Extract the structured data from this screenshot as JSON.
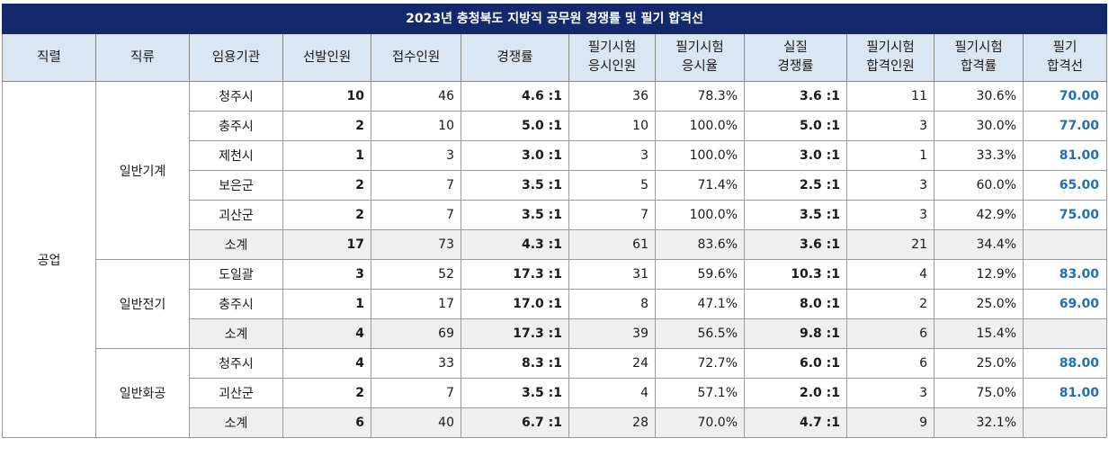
{
  "title": "2023년 충청북도 지방직 공무원 경쟁률 및 필기 합격선",
  "headers": [
    {
      "l1": "직렬",
      "l2": ""
    },
    {
      "l1": "직류",
      "l2": ""
    },
    {
      "l1": "임용기관",
      "l2": ""
    },
    {
      "l1": "선발인원",
      "l2": ""
    },
    {
      "l1": "접수인원",
      "l2": ""
    },
    {
      "l1": "경쟁률",
      "l2": ""
    },
    {
      "l1": "필기시험",
      "l2": "응시인원"
    },
    {
      "l1": "필기시험",
      "l2": "응시율"
    },
    {
      "l1": "실질",
      "l2": "경쟁률"
    },
    {
      "l1": "필기시험",
      "l2": "합격인원"
    },
    {
      "l1": "필기시험",
      "l2": "합격률"
    },
    {
      "l1": "필기",
      "l2": "합격선"
    }
  ],
  "series": "공업",
  "groups": [
    {
      "name": "일반기계",
      "rows": [
        {
          "agency": "청주시",
          "select": "10",
          "apply": "46",
          "ratio": "4.6 :1",
          "exam": "36",
          "exam_rate": "78.3%",
          "real_ratio": "3.6 :1",
          "pass": "11",
          "pass_rate": "30.6%",
          "cutoff": "70.00"
        },
        {
          "agency": "충주시",
          "select": "2",
          "apply": "10",
          "ratio": "5.0 :1",
          "exam": "10",
          "exam_rate": "100.0%",
          "real_ratio": "5.0 :1",
          "pass": "3",
          "pass_rate": "30.0%",
          "cutoff": "77.00"
        },
        {
          "agency": "제천시",
          "select": "1",
          "apply": "3",
          "ratio": "3.0 :1",
          "exam": "3",
          "exam_rate": "100.0%",
          "real_ratio": "3.0 :1",
          "pass": "1",
          "pass_rate": "33.3%",
          "cutoff": "81.00"
        },
        {
          "agency": "보은군",
          "select": "2",
          "apply": "7",
          "ratio": "3.5 :1",
          "exam": "5",
          "exam_rate": "71.4%",
          "real_ratio": "2.5 :1",
          "pass": "3",
          "pass_rate": "60.0%",
          "cutoff": "65.00"
        },
        {
          "agency": "괴산군",
          "select": "2",
          "apply": "7",
          "ratio": "3.5 :1",
          "exam": "7",
          "exam_rate": "100.0%",
          "real_ratio": "3.5 :1",
          "pass": "3",
          "pass_rate": "42.9%",
          "cutoff": "75.00"
        }
      ],
      "subtotal": {
        "agency": "소계",
        "select": "17",
        "apply": "73",
        "ratio": "4.3 :1",
        "exam": "61",
        "exam_rate": "83.6%",
        "real_ratio": "3.6 :1",
        "pass": "21",
        "pass_rate": "34.4%",
        "cutoff": ""
      }
    },
    {
      "name": "일반전기",
      "rows": [
        {
          "agency": "도일괄",
          "select": "3",
          "apply": "52",
          "ratio": "17.3 :1",
          "exam": "31",
          "exam_rate": "59.6%",
          "real_ratio": "10.3 :1",
          "pass": "4",
          "pass_rate": "12.9%",
          "cutoff": "83.00"
        },
        {
          "agency": "충주시",
          "select": "1",
          "apply": "17",
          "ratio": "17.0 :1",
          "exam": "8",
          "exam_rate": "47.1%",
          "real_ratio": "8.0 :1",
          "pass": "2",
          "pass_rate": "25.0%",
          "cutoff": "69.00"
        }
      ],
      "subtotal": {
        "agency": "소계",
        "select": "4",
        "apply": "69",
        "ratio": "17.3 :1",
        "exam": "39",
        "exam_rate": "56.5%",
        "real_ratio": "9.8 :1",
        "pass": "6",
        "pass_rate": "15.4%",
        "cutoff": ""
      }
    },
    {
      "name": "일반화공",
      "rows": [
        {
          "agency": "청주시",
          "select": "4",
          "apply": "33",
          "ratio": "8.3 :1",
          "exam": "24",
          "exam_rate": "72.7%",
          "real_ratio": "6.0 :1",
          "pass": "6",
          "pass_rate": "25.0%",
          "cutoff": "88.00"
        },
        {
          "agency": "괴산군",
          "select": "2",
          "apply": "7",
          "ratio": "3.5 :1",
          "exam": "4",
          "exam_rate": "57.1%",
          "real_ratio": "2.0 :1",
          "pass": "3",
          "pass_rate": "75.0%",
          "cutoff": "81.00"
        }
      ],
      "subtotal": {
        "agency": "소계",
        "select": "6",
        "apply": "40",
        "ratio": "6.7 :1",
        "exam": "28",
        "exam_rate": "70.0%",
        "real_ratio": "4.7 :1",
        "pass": "9",
        "pass_rate": "32.1%",
        "cutoff": ""
      }
    }
  ],
  "colors": {
    "title_bg": "#13296b",
    "header_bg": "#dbe6f3",
    "subtotal_bg": "#efefef",
    "cutoff_text": "#1f6fbf"
  }
}
